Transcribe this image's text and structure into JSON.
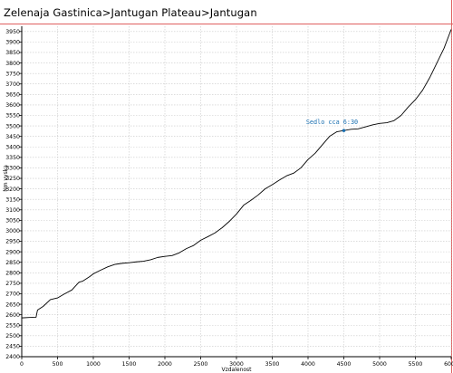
{
  "window": {
    "title": "Zelenaja Gastinica>Jantugan Plateau>Jantugan"
  },
  "colors": {
    "frame": "#e06060",
    "grid": "#c8c8c8",
    "line": "#000000",
    "annotation": "#1a6fb0"
  },
  "chart_data": {
    "type": "line",
    "title": "Zelenaja Gastinica>Jantugan Plateau>Jantugan",
    "xlabel": "Vzdalenost",
    "ylabel": "Nm vyska",
    "xlim": [
      0,
      6000
    ],
    "ylim": [
      2400,
      3975
    ],
    "x_ticks": [
      0,
      500,
      1000,
      1500,
      2000,
      2500,
      3000,
      3500,
      4000,
      4500,
      5000,
      5500,
      6000
    ],
    "y_ticks": [
      2400,
      2450,
      2500,
      2550,
      2600,
      2650,
      2700,
      2750,
      2800,
      2850,
      2900,
      2950,
      3000,
      3050,
      3100,
      3150,
      3200,
      3250,
      3300,
      3350,
      3400,
      3450,
      3500,
      3550,
      3600,
      3650,
      3700,
      3750,
      3800,
      3850,
      3900,
      3950
    ],
    "grid": true,
    "legend": "none",
    "series": [
      {
        "x": [
          0,
          100,
          200,
          220,
          300,
          400,
          500,
          600,
          700,
          800,
          850,
          950,
          1000,
          1100,
          1200,
          1300,
          1400,
          1500,
          1600,
          1700,
          1800,
          1900,
          2000,
          2100,
          2200,
          2300,
          2400,
          2500,
          2600,
          2700,
          2800,
          2900,
          3000,
          3100,
          3200,
          3300,
          3400,
          3500,
          3600,
          3700,
          3800,
          3900,
          4000,
          4100,
          4200,
          4300,
          4400,
          4500,
          4600,
          4700,
          4800,
          4900,
          5000,
          5100,
          5200,
          5300,
          5400,
          5500,
          5600,
          5700,
          5800,
          5900,
          6000
        ],
        "y": [
          2585,
          2587,
          2588,
          2622,
          2640,
          2672,
          2680,
          2700,
          2718,
          2755,
          2760,
          2782,
          2795,
          2812,
          2828,
          2840,
          2845,
          2848,
          2852,
          2855,
          2862,
          2873,
          2878,
          2882,
          2895,
          2915,
          2930,
          2955,
          2972,
          2990,
          3015,
          3045,
          3080,
          3122,
          3145,
          3170,
          3200,
          3220,
          3242,
          3262,
          3275,
          3300,
          3340,
          3370,
          3410,
          3450,
          3472,
          3478,
          3484,
          3486,
          3495,
          3505,
          3512,
          3515,
          3525,
          3550,
          3590,
          3625,
          3670,
          3730,
          3800,
          3870,
          3960
        ]
      }
    ],
    "annotations": [
      {
        "text": "Sedlo cca 6:30",
        "x": 4500,
        "y": 3478
      }
    ]
  }
}
